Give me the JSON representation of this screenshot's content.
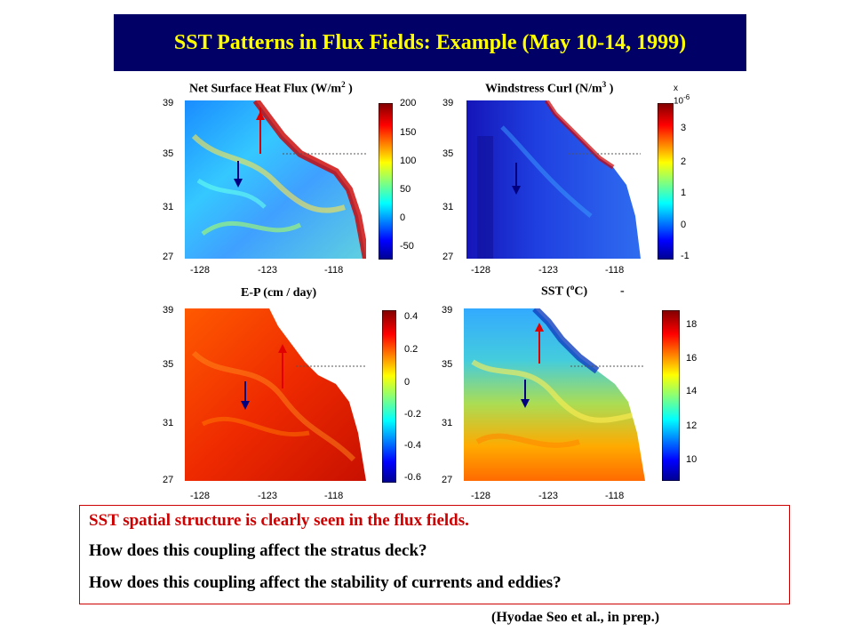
{
  "slide": {
    "title": "SST Patterns in Flux Fields: Example (May 10-14, 1999)",
    "citation": "(Hyodae Seo et al., in prep.)"
  },
  "text_box": {
    "line1": "SST spatial structure is clearly seen in the flux fields.",
    "line2": "How does this coupling affect the stratus deck?",
    "line3": "How does this coupling affect the stability of currents and eddies?"
  },
  "panels": [
    {
      "title": "Net Surface Heat Flux (W/m",
      "title_sup": "2",
      "title_end": " )",
      "colorbar_ticks": [
        "200",
        "150",
        "100",
        "50",
        "0",
        "-50"
      ],
      "lat_ticks": [
        "39",
        "35",
        "31",
        "27"
      ],
      "lon_ticks": [
        "-128",
        "-123",
        "-118"
      ]
    },
    {
      "title": "Windstress Curl (N/m",
      "title_sup": "3",
      "title_end": " )",
      "exponent": "x 10",
      "exponent_sup": "-6",
      "colorbar_ticks": [
        "3",
        "2",
        "1",
        "0",
        "-1"
      ],
      "lat_ticks": [
        "39",
        "35",
        "31",
        "27"
      ],
      "lon_ticks": [
        "-128",
        "-123",
        "-118"
      ]
    },
    {
      "title": "E-P (cm / day)",
      "colorbar_ticks": [
        "0.4",
        "0.2",
        "0",
        "-0.2",
        "-0.4",
        "-0.6"
      ],
      "lat_ticks": [
        "39",
        "35",
        "31",
        "27"
      ],
      "lon_ticks": [
        "-128",
        "-123",
        "-118"
      ]
    },
    {
      "title": "SST (",
      "title_sup": "o",
      "title_end": "C)",
      "dash": "-",
      "colorbar_ticks": [
        "18",
        "16",
        "14",
        "12",
        "10"
      ],
      "lat_ticks": [
        "39",
        "35",
        "31",
        "27"
      ],
      "lon_ticks": [
        "-128",
        "-123",
        "-118"
      ]
    }
  ],
  "colors": {
    "title_bar": "#000066",
    "title_text": "#ffff00",
    "highlight_red": "#cc0000",
    "arrow_red": "#e00000",
    "arrow_blue": "#000080"
  }
}
